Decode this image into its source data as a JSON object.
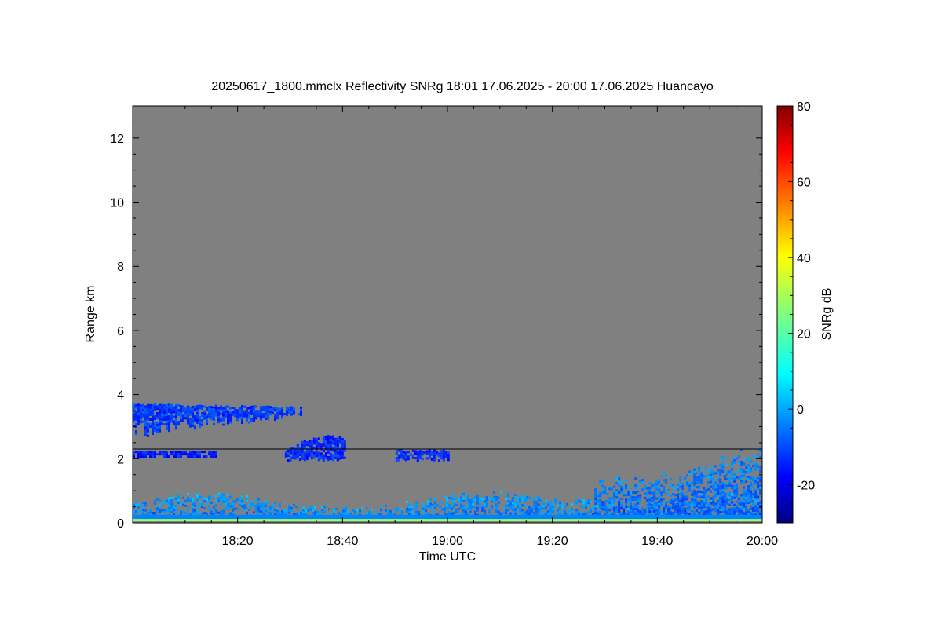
{
  "chart_data": {
    "type": "heatmap",
    "title": "20250617_1800.mmclx Reflectivity SNRg   18:01 17.06.2025 - 20:00 17.06.2025 Huancayo",
    "xlabel": "Time UTC",
    "ylabel": "Range km",
    "colorbar_label": "SNRg dB",
    "x_range_minutes": [
      0,
      120
    ],
    "x_tick_minutes": [
      20,
      40,
      60,
      80,
      100,
      120
    ],
    "x_tick_labels": [
      "18:20",
      "18:40",
      "19:00",
      "19:20",
      "19:40",
      "20:00"
    ],
    "y_range": [
      0,
      13
    ],
    "y_ticks": [
      0,
      2,
      4,
      6,
      8,
      10,
      12
    ],
    "colorbar_range": [
      -30,
      80
    ],
    "colorbar_ticks": [
      -20,
      0,
      20,
      40,
      60,
      80
    ],
    "grid": false,
    "background_color": "#808080",
    "reference_line_km": 2.3,
    "echo_regions": [
      {
        "name": "cloud layer",
        "t": [
          0,
          32
        ],
        "range_km": [
          2.7,
          3.7
        ],
        "snr_db": -10
      },
      {
        "name": "thin layer",
        "t": [
          0,
          16
        ],
        "range_km": [
          2.05,
          2.25
        ],
        "snr_db": -13
      },
      {
        "name": "elevated patches",
        "t": [
          29,
          60
        ],
        "range_km": [
          1.9,
          2.7
        ],
        "snr_db": -12
      },
      {
        "name": "boundary layer",
        "t": [
          0,
          120
        ],
        "range_km": [
          0.15,
          1.0
        ],
        "snr_db": -5
      },
      {
        "name": "late convection",
        "t": [
          88,
          120
        ],
        "range_km": [
          0.2,
          2.4
        ],
        "snr_db": -7
      },
      {
        "name": "surface band",
        "t": [
          0,
          120
        ],
        "range_km": [
          0.05,
          0.15
        ],
        "snr_db": 28
      }
    ]
  }
}
